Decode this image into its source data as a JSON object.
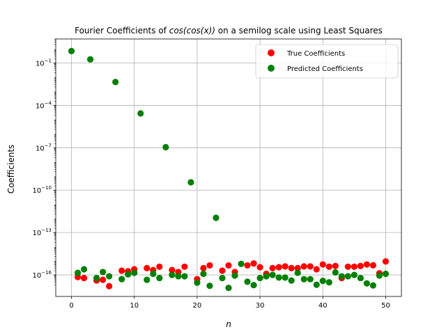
{
  "chart_data": {
    "type": "scatter",
    "title": "Fourier Coefficients of $cos(cos(x))$ on a semilog scale using Least Squares",
    "title_parts": {
      "prefix": "Fourier Coefficients of ",
      "math": "cos(cos(x))",
      "suffix": " on a semilog scale using Least Squares"
    },
    "xlabel": "n",
    "ylabel": "Coefficients",
    "yscale": "log",
    "xlim": [
      -2.5,
      52.5
    ],
    "ylim": [
      3e-18,
      5
    ],
    "grid": true,
    "legend_position": "upper right",
    "xticks": [
      0,
      10,
      20,
      30,
      40,
      50
    ],
    "yticks": [
      {
        "value": 0.1,
        "mantissa": "10",
        "exponent": "−1"
      },
      {
        "value": 0.0001,
        "mantissa": "10",
        "exponent": "−4"
      },
      {
        "value": 1e-07,
        "mantissa": "10",
        "exponent": "−7"
      },
      {
        "value": 1e-10,
        "mantissa": "10",
        "exponent": "−10"
      },
      {
        "value": 1e-13,
        "mantissa": "10",
        "exponent": "−13"
      },
      {
        "value": 1e-16,
        "mantissa": "10",
        "exponent": "−16"
      }
    ],
    "series": [
      {
        "name": "True Coefficients",
        "color": "#ff0000",
        "x": [
          1,
          2,
          4,
          5,
          6,
          8,
          9,
          10,
          12,
          13,
          14,
          16,
          17,
          18,
          20,
          21,
          22,
          24,
          25,
          26,
          28,
          29,
          30,
          31,
          32,
          33,
          34,
          35,
          36,
          37,
          38,
          39,
          40,
          41,
          42,
          43,
          44,
          45,
          46,
          47,
          48,
          49,
          50
        ],
        "y": [
          7e-17,
          6e-17,
          4e-17,
          4.5e-17,
          1.6e-17,
          2e-16,
          1.8e-16,
          2.5e-16,
          3e-16,
          2.2e-16,
          3.8e-16,
          2.2e-16,
          1.6e-16,
          3.8e-16,
          5e-17,
          3e-16,
          4.7e-16,
          2e-16,
          4.7e-16,
          1.6e-16,
          4.7e-16,
          6.5e-16,
          3.5e-16,
          1.2e-16,
          3e-16,
          3.5e-16,
          4e-16,
          3e-16,
          3e-16,
          4e-16,
          4e-16,
          2.5e-16,
          5.5e-16,
          3.8e-16,
          4.3e-16,
          6e-17,
          3.8e-16,
          3.8e-16,
          4.3e-16,
          5.5e-16,
          4.8e-16,
          1.3e-16,
          9e-16
        ]
      },
      {
        "name": "Predicted Coefficients",
        "color": "#008000",
        "x": [
          0,
          1,
          2,
          3,
          4,
          5,
          6,
          7,
          8,
          9,
          10,
          11,
          12,
          13,
          14,
          15,
          16,
          17,
          18,
          19,
          20,
          21,
          22,
          23,
          24,
          25,
          26,
          27,
          28,
          29,
          30,
          31,
          32,
          33,
          34,
          35,
          36,
          37,
          38,
          39,
          40,
          41,
          42,
          43,
          44,
          45,
          46,
          47,
          48,
          49,
          50
        ],
        "y": [
          0.7,
          1.4e-16,
          2.5e-16,
          0.18,
          6e-17,
          1.6e-16,
          8e-17,
          0.0045,
          5e-17,
          1.1e-16,
          1.4e-16,
          2.7e-05,
          4.5e-17,
          1.2e-16,
          6e-17,
          1.1e-07,
          1e-16,
          8e-17,
          8e-17,
          3.6e-10,
          2.8e-17,
          1.2e-16,
          1.7e-17,
          1.1e-12,
          6e-17,
          1.2e-17,
          9e-17,
          6e-16,
          3.3e-17,
          1.9e-17,
          6e-17,
          8e-17,
          1e-16,
          6.5e-17,
          6.5e-17,
          4e-17,
          1.4e-16,
          5e-17,
          5e-17,
          2e-17,
          3.8e-17,
          3e-17,
          1.5e-16,
          8e-17,
          8e-17,
          1e-16,
          6e-17,
          2.5e-17,
          1.8e-17,
          9e-17,
          1.2e-16
        ]
      }
    ]
  }
}
